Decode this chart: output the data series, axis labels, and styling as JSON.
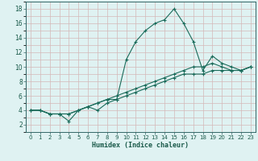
{
  "xlabel": "Humidex (Indice chaleur)",
  "bg_color": "#dff2f2",
  "grid_color": "#d4b8b8",
  "line_color": "#1a6b5a",
  "xlim": [
    -0.5,
    23.5
  ],
  "ylim": [
    1.0,
    19.0
  ],
  "xticks": [
    0,
    1,
    2,
    3,
    4,
    5,
    6,
    7,
    8,
    9,
    10,
    11,
    12,
    13,
    14,
    15,
    16,
    17,
    18,
    19,
    20,
    21,
    22,
    23
  ],
  "yticks": [
    2,
    4,
    6,
    8,
    10,
    12,
    14,
    16,
    18
  ],
  "series": [
    {
      "x": [
        0,
        1,
        2,
        3,
        4,
        5,
        6,
        7,
        8,
        9,
        10,
        11,
        12,
        13,
        14,
        15,
        16,
        17,
        18,
        19,
        20,
        21,
        22,
        23
      ],
      "y": [
        4,
        4,
        3.5,
        3.5,
        2.5,
        4,
        4.5,
        4,
        5,
        5.5,
        11,
        13.5,
        15,
        16,
        16.5,
        18,
        16,
        13.5,
        9.5,
        11.5,
        10.5,
        10,
        9.5,
        10
      ]
    },
    {
      "x": [
        0,
        1,
        2,
        3,
        4,
        5,
        6,
        7,
        8,
        9,
        10,
        11,
        12,
        13,
        14,
        15,
        16,
        17,
        18,
        19,
        20,
        21,
        22,
        23
      ],
      "y": [
        4,
        4,
        3.5,
        3.5,
        3.5,
        4,
        4.5,
        5,
        5.5,
        6,
        6.5,
        7,
        7.5,
        8,
        8.5,
        9,
        9.5,
        10,
        10,
        10.5,
        10,
        9.5,
        9.5,
        10
      ]
    },
    {
      "x": [
        0,
        1,
        2,
        3,
        4,
        5,
        6,
        7,
        8,
        9,
        10,
        11,
        12,
        13,
        14,
        15,
        16,
        17,
        18,
        19,
        20,
        21,
        22,
        23
      ],
      "y": [
        4,
        4,
        3.5,
        3.5,
        3.5,
        4,
        4.5,
        5,
        5.5,
        5.5,
        6,
        6.5,
        7,
        7.5,
        8,
        8.5,
        9,
        9,
        9,
        9.5,
        9.5,
        9.5,
        9.5,
        10
      ]
    }
  ]
}
